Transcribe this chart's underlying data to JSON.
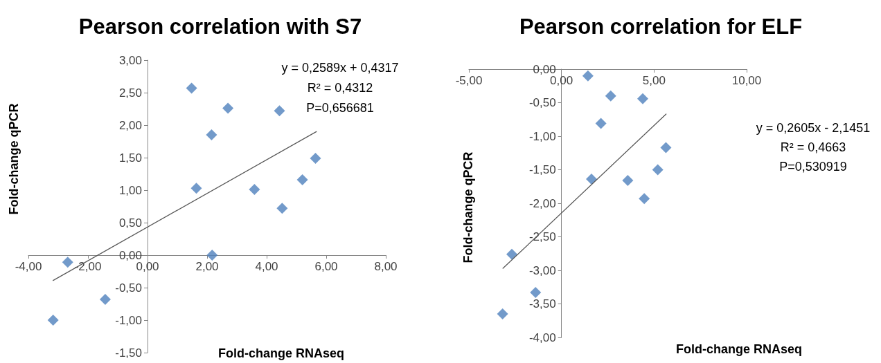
{
  "chart_data": [
    {
      "type": "scatter",
      "title": "Pearson correlation with S7",
      "xlabel": "Fold-change RNAseq",
      "ylabel": "Fold-change qPCR",
      "marker": "diamond",
      "grid": false,
      "xlim": [
        -4,
        8
      ],
      "xticks": [
        {
          "value": -4,
          "label": "-4,00"
        },
        {
          "value": -2,
          "label": "-2,00"
        },
        {
          "value": 0,
          "label": "0,00"
        },
        {
          "value": 2,
          "label": "2,00"
        },
        {
          "value": 4,
          "label": "4,00"
        },
        {
          "value": 6,
          "label": "6,00"
        },
        {
          "value": 8,
          "label": "8,00"
        }
      ],
      "ylim": [
        -1.5,
        3
      ],
      "yticks": [
        {
          "value": -1.5,
          "label": "-1,50"
        },
        {
          "value": -1,
          "label": "-1,00"
        },
        {
          "value": -0.5,
          "label": "-0,50"
        },
        {
          "value": 0,
          "label": "0,00"
        },
        {
          "value": 0.5,
          "label": "0,50"
        },
        {
          "value": 1,
          "label": "1,00"
        },
        {
          "value": 1.5,
          "label": "1,50"
        },
        {
          "value": 2,
          "label": "2,00"
        },
        {
          "value": 2.5,
          "label": "2,50"
        },
        {
          "value": 3,
          "label": "3,00"
        }
      ],
      "annotations": [
        "y = 0,2589x + 0,4317",
        "R² = 0,4312",
        "P=0,656681"
      ],
      "series": [
        {
          "type": "scatter",
          "color": "#4f81bd",
          "x": [
            1.48,
            2.7,
            4.43,
            2.15,
            5.64,
            5.2,
            1.64,
            3.59,
            4.52,
            2.17,
            -2.68,
            -1.42,
            -3.17
          ],
          "values": [
            2.57,
            2.26,
            2.22,
            1.85,
            1.49,
            1.16,
            1.03,
            1.01,
            0.72,
            0.0,
            -0.11,
            -0.68,
            -1.0
          ]
        },
        {
          "type": "line",
          "color": "#595959",
          "marker": "none",
          "line_style": "solid",
          "x": [
            -3.17,
            5.67
          ],
          "values": [
            -0.39,
            1.9
          ]
        }
      ]
    },
    {
      "type": "scatter",
      "title": "Pearson correlation for ELF",
      "xlabel": "Fold-change RNAseq",
      "ylabel": "Fold-change qPCR",
      "marker": "diamond",
      "grid": false,
      "xlim": [
        -5,
        10
      ],
      "xticks": [
        {
          "value": -5,
          "label": "-5,00"
        },
        {
          "value": 0,
          "label": "0,00"
        },
        {
          "value": 5,
          "label": "5,00"
        },
        {
          "value": 10,
          "label": "10,00"
        }
      ],
      "ylim": [
        -4,
        0
      ],
      "yticks": [
        {
          "value": -4,
          "label": "-4,00"
        },
        {
          "value": -3.5,
          "label": "-3,50"
        },
        {
          "value": -3,
          "label": "-3,00"
        },
        {
          "value": -2.5,
          "label": "-2,50"
        },
        {
          "value": -2,
          "label": "-2,00"
        },
        {
          "value": -1.5,
          "label": "-1,50"
        },
        {
          "value": -1,
          "label": "-1,00"
        },
        {
          "value": -0.5,
          "label": "-0,50"
        },
        {
          "value": 0,
          "label": "0,00"
        }
      ],
      "annotations": [
        "y = 0,2605x - 2,1451",
        "R² = 0,4663",
        "P=0,530919"
      ],
      "series": [
        {
          "type": "scatter",
          "color": "#4f81bd",
          "x": [
            1.43,
            2.66,
            4.39,
            2.13,
            5.64,
            5.2,
            1.62,
            3.58,
            4.47,
            -2.68,
            -1.4,
            -3.18
          ],
          "values": [
            -0.1,
            -0.4,
            -0.44,
            -0.81,
            -1.17,
            -1.5,
            -1.64,
            -1.66,
            -1.93,
            -2.76,
            -3.33,
            -3.65
          ]
        },
        {
          "type": "line",
          "color": "#595959",
          "marker": "none",
          "line_style": "solid",
          "x": [
            -3.16,
            5.65
          ],
          "values": [
            -2.97,
            -0.67
          ]
        }
      ]
    }
  ]
}
